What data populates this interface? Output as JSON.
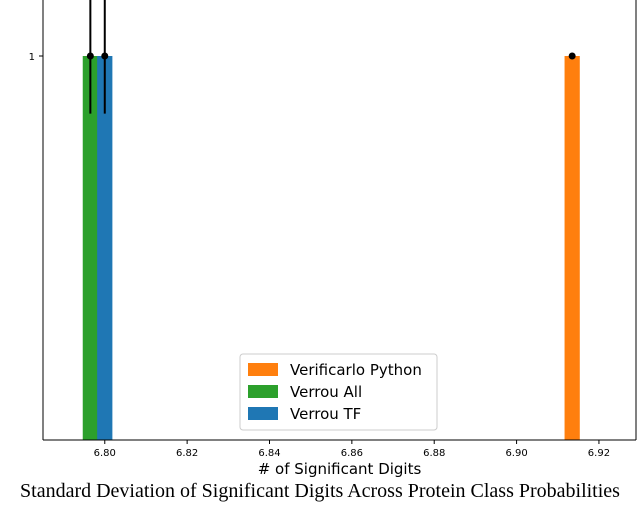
{
  "chart_data": {
    "type": "bar",
    "xlabel": "# of Significant Digits",
    "ylabel": "",
    "xlim": [
      6.785,
      6.929
    ],
    "ylim": [
      0.0,
      1.1
    ],
    "x_ticks": [
      6.8,
      6.82,
      6.84,
      6.86,
      6.88,
      6.9,
      6.92
    ],
    "x_tick_labels": [
      "6.80",
      "6.82",
      "6.84",
      "6.86",
      "6.88",
      "6.90",
      "6.92"
    ],
    "y_ticks": [
      1
    ],
    "y_tick_labels": [
      "1"
    ],
    "bar_width": 0.0037,
    "legend_position": "lower-center",
    "grid": false,
    "series": [
      {
        "name": "Verificarlo Python",
        "color": "#ff7f0e",
        "x": 6.9135,
        "value": 1,
        "error_upper": 0,
        "error_lower": 0
      },
      {
        "name": "Verrou All",
        "color": "#2ca02c",
        "x": 6.7965,
        "value": 1,
        "error_upper": 0.15,
        "error_lower": 0.15
      },
      {
        "name": "Verrou TF",
        "color": "#1f77b4",
        "x": 6.8,
        "value": 1,
        "error_upper": 0.15,
        "error_lower": 0.15
      }
    ],
    "caption": "Standard Deviation of Significant Digits Across Protein Class Probabilities"
  }
}
